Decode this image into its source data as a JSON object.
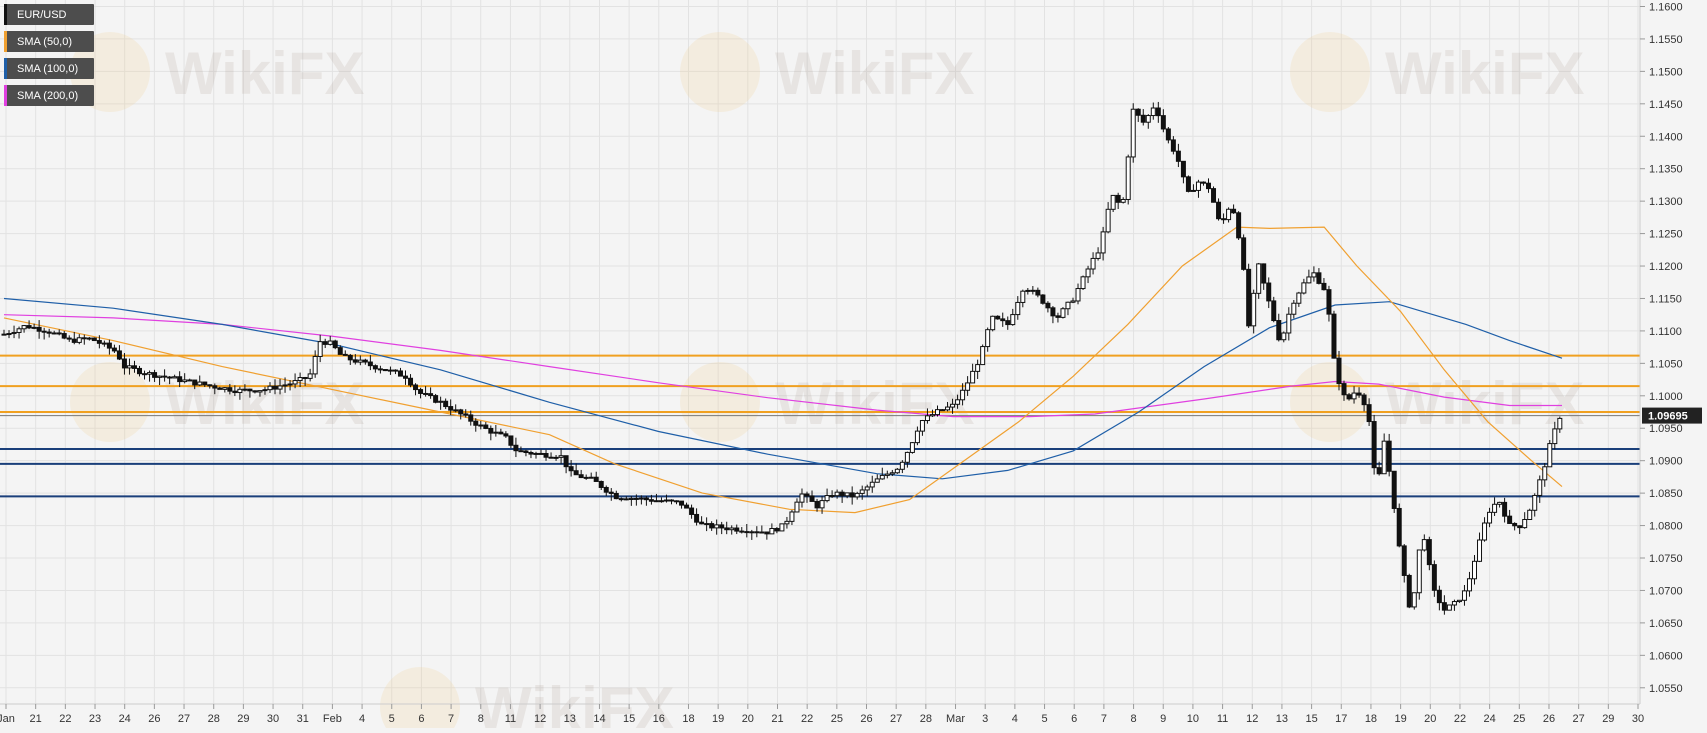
{
  "legend": [
    {
      "label": "EUR/USD",
      "color": "#111111"
    },
    {
      "label": "SMA (50,0)",
      "color": "#f0a030"
    },
    {
      "label": "SMA (100,0)",
      "color": "#1f5fa8"
    },
    {
      "label": "SMA (200,0)",
      "color": "#e040e0"
    }
  ],
  "watermark_text": "WikiFX",
  "price_tag": {
    "value": "1.09695",
    "price": 1.09695
  },
  "colors": {
    "background": "#f4f4f4",
    "grid": "#e2e2e2",
    "candle": "#111111",
    "sma50": "#f0a030",
    "sma100": "#1f5fa8",
    "sma200": "#e040e0",
    "resistance": "#f0a020",
    "support": "#1a3f7a"
  },
  "chart_data": {
    "type": "candlestick",
    "title": "",
    "xlabel": "",
    "ylabel": "",
    "ylim": [
      1.0525,
      1.161
    ],
    "yticks": [
      1.16,
      1.155,
      1.15,
      1.145,
      1.14,
      1.135,
      1.13,
      1.125,
      1.12,
      1.115,
      1.11,
      1.105,
      1.1,
      1.095,
      1.09,
      1.085,
      1.08,
      1.075,
      1.07,
      1.065,
      1.06,
      1.055
    ],
    "ytick_labels": [
      "1.1600",
      "1.1550",
      "1.1500",
      "1.1450",
      "1.1400",
      "1.1350",
      "1.1300",
      "1.1250",
      "1.1200",
      "1.1150",
      "1.1100",
      "1.1050",
      "1.1000",
      "1.0950",
      "1.0900",
      "1.0850",
      "1.0800",
      "1.0750",
      "1.0700",
      "1.0650",
      "1.0600",
      "1.0550"
    ],
    "xticks": [
      "Jan",
      "21",
      "22",
      "23",
      "24",
      "26",
      "27",
      "28",
      "29",
      "30",
      "31",
      "Feb",
      "4",
      "5",
      "6",
      "7",
      "8",
      "11",
      "12",
      "13",
      "14",
      "15",
      "16",
      "18",
      "19",
      "20",
      "21",
      "22",
      "25",
      "26",
      "27",
      "28",
      "Mar",
      "3",
      "4",
      "5",
      "6",
      "7",
      "8",
      "9",
      "10",
      "11",
      "12",
      "13",
      "15",
      "17",
      "18",
      "19",
      "20",
      "22",
      "24",
      "25",
      "26",
      "27",
      "29",
      "30"
    ],
    "grid": true,
    "legend_position": "top-left",
    "horizontal_levels": [
      {
        "price": 1.1062,
        "kind": "resistance"
      },
      {
        "price": 1.1015,
        "kind": "resistance"
      },
      {
        "price": 1.0975,
        "kind": "resistance"
      },
      {
        "price": 1.0918,
        "kind": "support"
      },
      {
        "price": 1.0895,
        "kind": "support"
      },
      {
        "price": 1.0845,
        "kind": "support"
      }
    ],
    "close_path": [
      [
        0,
        1.1095
      ],
      [
        20,
        1.1108
      ],
      [
        40,
        1.11
      ],
      [
        60,
        1.1085
      ],
      [
        80,
        1.1088
      ],
      [
        103,
        1.1068
      ],
      [
        110,
        1.1045
      ],
      [
        130,
        1.1035
      ],
      [
        160,
        1.1025
      ],
      [
        190,
        1.1015
      ],
      [
        215,
        1.1008
      ],
      [
        240,
        1.101
      ],
      [
        265,
        1.102
      ],
      [
        280,
        1.103
      ],
      [
        290,
        1.1085
      ],
      [
        300,
        1.108
      ],
      [
        310,
        1.106
      ],
      [
        330,
        1.105
      ],
      [
        350,
        1.104
      ],
      [
        368,
        1.103
      ],
      [
        380,
        1.1005
      ],
      [
        400,
        1.099
      ],
      [
        420,
        1.097
      ],
      [
        440,
        1.095
      ],
      [
        460,
        1.0935
      ],
      [
        470,
        1.0915
      ],
      [
        490,
        1.091
      ],
      [
        510,
        1.0908
      ],
      [
        520,
        1.088
      ],
      [
        540,
        1.087
      ],
      [
        560,
        1.0845
      ],
      [
        590,
        1.084
      ],
      [
        620,
        1.0835
      ],
      [
        640,
        1.08
      ],
      [
        670,
        1.0795
      ],
      [
        700,
        1.079
      ],
      [
        715,
        1.08
      ],
      [
        730,
        1.085
      ],
      [
        745,
        1.083
      ],
      [
        760,
        1.085
      ],
      [
        780,
        1.0845
      ],
      [
        800,
        1.087
      ],
      [
        820,
        1.089
      ],
      [
        830,
        1.092
      ],
      [
        840,
        1.096
      ],
      [
        855,
        1.0975
      ],
      [
        870,
        1.0985
      ],
      [
        880,
        1.101
      ],
      [
        895,
        1.106
      ],
      [
        905,
        1.112
      ],
      [
        920,
        1.111
      ],
      [
        935,
        1.117
      ],
      [
        950,
        1.115
      ],
      [
        965,
        1.112
      ],
      [
        980,
        1.115
      ],
      [
        995,
        1.12
      ],
      [
        1005,
        1.123
      ],
      [
        1015,
        1.131
      ],
      [
        1025,
        1.129
      ],
      [
        1035,
        1.144
      ],
      [
        1045,
        1.142
      ],
      [
        1055,
        1.145
      ],
      [
        1065,
        1.14
      ],
      [
        1075,
        1.137
      ],
      [
        1085,
        1.131
      ],
      [
        1095,
        1.133
      ],
      [
        1105,
        1.132
      ],
      [
        1115,
        1.126
      ],
      [
        1125,
        1.13
      ],
      [
        1135,
        1.122
      ],
      [
        1140,
        1.11
      ],
      [
        1150,
        1.12
      ],
      [
        1160,
        1.114
      ],
      [
        1170,
        1.108
      ],
      [
        1180,
        1.114
      ],
      [
        1190,
        1.117
      ],
      [
        1200,
        1.119
      ],
      [
        1212,
        1.116
      ],
      [
        1220,
        1.104
      ],
      [
        1230,
        1.099
      ],
      [
        1240,
        1.101
      ],
      [
        1250,
        1.098
      ],
      [
        1258,
        1.085
      ],
      [
        1265,
        1.093
      ],
      [
        1272,
        1.086
      ],
      [
        1280,
        1.075
      ],
      [
        1290,
        1.066
      ],
      [
        1300,
        1.08
      ],
      [
        1310,
        1.07
      ],
      [
        1320,
        1.067
      ],
      [
        1330,
        1.068
      ],
      [
        1340,
        1.07
      ],
      [
        1350,
        1.076
      ],
      [
        1360,
        1.082
      ],
      [
        1370,
        1.084
      ],
      [
        1380,
        1.08
      ],
      [
        1390,
        1.08
      ],
      [
        1400,
        1.083
      ],
      [
        1410,
        1.088
      ],
      [
        1418,
        1.093
      ],
      [
        1426,
        1.0968
      ]
    ],
    "sma50": [
      [
        0,
        1.112
      ],
      [
        100,
        1.1085
      ],
      [
        200,
        1.1045
      ],
      [
        300,
        1.101
      ],
      [
        400,
        1.0975
      ],
      [
        500,
        1.094
      ],
      [
        560,
        1.0895
      ],
      [
        640,
        1.085
      ],
      [
        720,
        1.0825
      ],
      [
        780,
        1.082
      ],
      [
        830,
        1.084
      ],
      [
        880,
        1.09
      ],
      [
        930,
        1.096
      ],
      [
        980,
        1.103
      ],
      [
        1030,
        1.111
      ],
      [
        1080,
        1.12
      ],
      [
        1130,
        1.126
      ],
      [
        1160,
        1.1258
      ],
      [
        1210,
        1.126
      ],
      [
        1240,
        1.12
      ],
      [
        1280,
        1.113
      ],
      [
        1320,
        1.104
      ],
      [
        1360,
        1.096
      ],
      [
        1400,
        1.09
      ],
      [
        1428,
        1.086
      ]
    ],
    "sma100": [
      [
        0,
        1.115
      ],
      [
        100,
        1.1135
      ],
      [
        200,
        1.111
      ],
      [
        300,
        1.108
      ],
      [
        400,
        1.104
      ],
      [
        500,
        1.099
      ],
      [
        600,
        1.0945
      ],
      [
        700,
        1.091
      ],
      [
        800,
        1.088
      ],
      [
        860,
        1.0872
      ],
      [
        920,
        1.0885
      ],
      [
        980,
        1.0915
      ],
      [
        1040,
        1.0975
      ],
      [
        1100,
        1.1045
      ],
      [
        1160,
        1.1105
      ],
      [
        1220,
        1.114
      ],
      [
        1270,
        1.1145
      ],
      [
        1300,
        1.113
      ],
      [
        1340,
        1.111
      ],
      [
        1380,
        1.1085
      ],
      [
        1428,
        1.1058
      ]
    ],
    "sma200": [
      [
        0,
        1.1125
      ],
      [
        100,
        1.112
      ],
      [
        200,
        1.111
      ],
      [
        300,
        1.1092
      ],
      [
        400,
        1.107
      ],
      [
        500,
        1.1045
      ],
      [
        600,
        1.102
      ],
      [
        700,
        1.0997
      ],
      [
        800,
        1.0978
      ],
      [
        870,
        1.0968
      ],
      [
        940,
        1.0968
      ],
      [
        1000,
        1.0972
      ],
      [
        1100,
        1.0995
      ],
      [
        1180,
        1.1015
      ],
      [
        1220,
        1.1022
      ],
      [
        1260,
        1.1018
      ],
      [
        1320,
        1.0998
      ],
      [
        1380,
        1.0985
      ],
      [
        1428,
        1.0985
      ]
    ]
  }
}
